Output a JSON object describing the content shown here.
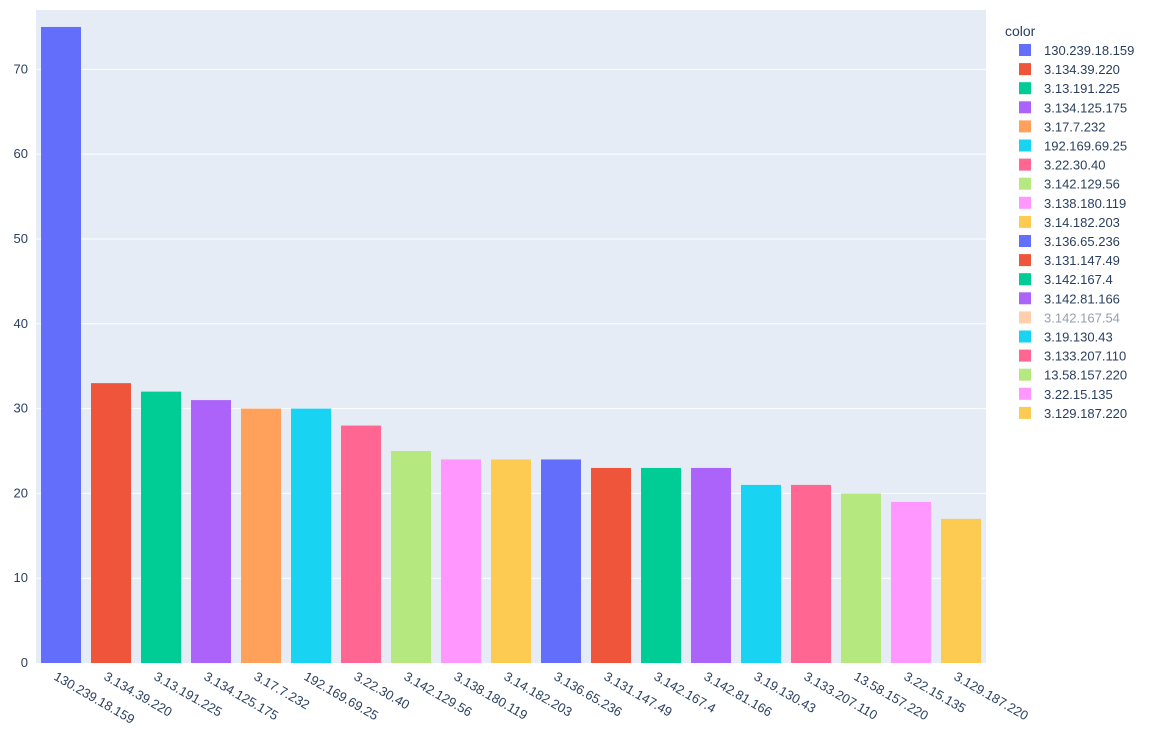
{
  "chart_data": {
    "type": "bar",
    "title": "",
    "xlabel": "",
    "ylabel": "",
    "ylim": [
      0,
      77
    ],
    "y_ticks": [
      0,
      10,
      20,
      30,
      40,
      50,
      60,
      70
    ],
    "grid": true,
    "legend_position": "right",
    "legend_title": "color",
    "categories": [
      "130.239.18.159",
      "3.134.39.220",
      "3.13.191.225",
      "3.134.125.175",
      "3.17.7.232",
      "192.169.69.25",
      "3.22.30.40",
      "3.142.129.56",
      "3.138.180.119",
      "3.14.182.203",
      "3.136.65.236",
      "3.131.147.49",
      "3.142.167.4",
      "3.142.81.166",
      "3.19.130.43",
      "3.133.207.110",
      "13.58.157.220",
      "3.22.15.135",
      "3.129.187.220"
    ],
    "values": [
      75,
      33,
      32,
      31,
      30,
      30,
      28,
      25,
      24,
      24,
      24,
      23,
      23,
      23,
      21,
      21,
      20,
      19,
      17
    ],
    "colors": [
      "#636efa",
      "#EF553B",
      "#00cc96",
      "#ab63fa",
      "#FFA15A",
      "#19d3f3",
      "#FF6692",
      "#B6E880",
      "#FF97FF",
      "#FECB52",
      "#636efa",
      "#EF553B",
      "#00cc96",
      "#ab63fa",
      "#19d3f3",
      "#FF6692",
      "#B6E880",
      "#FF97FF",
      "#FECB52"
    ],
    "legend": [
      {
        "name": "130.239.18.159",
        "color": "#636efa"
      },
      {
        "name": "3.134.39.220",
        "color": "#EF553B"
      },
      {
        "name": "3.13.191.225",
        "color": "#00cc96"
      },
      {
        "name": "3.134.125.175",
        "color": "#ab63fa"
      },
      {
        "name": "3.17.7.232",
        "color": "#FFA15A"
      },
      {
        "name": "192.169.69.25",
        "color": "#19d3f3"
      },
      {
        "name": "3.22.30.40",
        "color": "#FF6692"
      },
      {
        "name": "3.142.129.56",
        "color": "#B6E880"
      },
      {
        "name": "3.138.180.119",
        "color": "#FF97FF"
      },
      {
        "name": "3.14.182.203",
        "color": "#FECB52"
      },
      {
        "name": "3.136.65.236",
        "color": "#636efa"
      },
      {
        "name": "3.131.147.49",
        "color": "#EF553B"
      },
      {
        "name": "3.142.167.4",
        "color": "#00cc96"
      },
      {
        "name": "3.142.81.166",
        "color": "#ab63fa"
      },
      {
        "name": "3.142.167.54",
        "color": "#FFA15A",
        "hidden": true
      },
      {
        "name": "3.19.130.43",
        "color": "#19d3f3"
      },
      {
        "name": "3.133.207.110",
        "color": "#FF6692"
      },
      {
        "name": "13.58.157.220",
        "color": "#B6E880"
      },
      {
        "name": "3.22.15.135",
        "color": "#FF97FF"
      },
      {
        "name": "3.129.187.220",
        "color": "#FECB52"
      }
    ]
  }
}
